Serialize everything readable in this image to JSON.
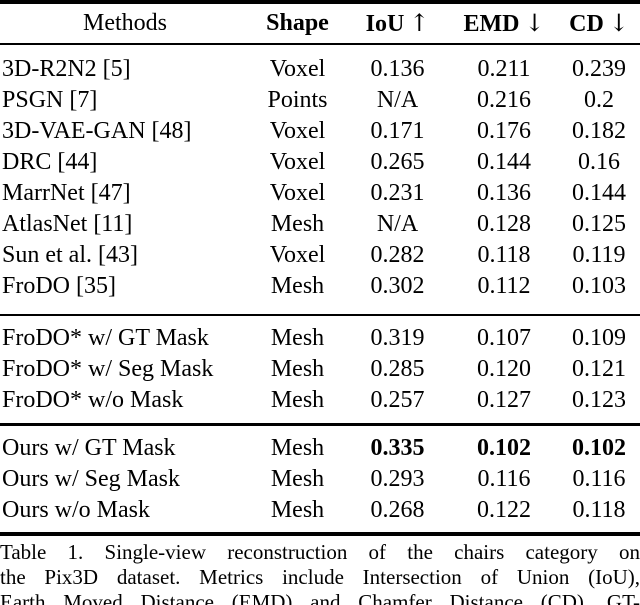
{
  "colors": {
    "background": "#ffffff",
    "text": "#000000",
    "rule": "#000000"
  },
  "table": {
    "header": {
      "methods": "Methods",
      "shape": "Shape",
      "iou": "IoU",
      "emd": "EMD",
      "cd": "CD",
      "arrow_up": "↑",
      "arrow_down": "↓"
    },
    "sections": [
      {
        "rows": [
          {
            "method": "3D-R2N2 [5]",
            "shape": "Voxel",
            "iou": "0.136",
            "emd": "0.211",
            "cd": "0.239",
            "bold_values": false
          },
          {
            "method": "PSGN [7]",
            "shape": "Points",
            "iou": "N/A",
            "emd": "0.216",
            "cd": "0.2",
            "bold_values": false
          },
          {
            "method": "3D-VAE-GAN [48]",
            "shape": "Voxel",
            "iou": "0.171",
            "emd": "0.176",
            "cd": "0.182",
            "bold_values": false
          },
          {
            "method": "DRC [44]",
            "shape": "Voxel",
            "iou": "0.265",
            "emd": "0.144",
            "cd": "0.16",
            "bold_values": false
          },
          {
            "method": "MarrNet [47]",
            "shape": "Voxel",
            "iou": "0.231",
            "emd": "0.136",
            "cd": "0.144",
            "bold_values": false
          },
          {
            "method": "AtlasNet [11]",
            "shape": "Mesh",
            "iou": "N/A",
            "emd": "0.128",
            "cd": "0.125",
            "bold_values": false
          },
          {
            "method": "Sun et al. [43]",
            "shape": "Voxel",
            "iou": "0.282",
            "emd": "0.118",
            "cd": "0.119",
            "bold_values": false
          },
          {
            "method": "FroDO [35]",
            "shape": "Mesh",
            "iou": "0.302",
            "emd": "0.112",
            "cd": "0.103",
            "bold_values": false
          }
        ]
      },
      {
        "rows": [
          {
            "method": "FroDO* w/ GT Mask",
            "shape": "Mesh",
            "iou": "0.319",
            "emd": "0.107",
            "cd": "0.109",
            "bold_values": false
          },
          {
            "method": "FroDO* w/ Seg Mask",
            "shape": "Mesh",
            "iou": "0.285",
            "emd": "0.120",
            "cd": "0.121",
            "bold_values": false
          },
          {
            "method": "FroDO* w/o Mask",
            "shape": "Mesh",
            "iou": "0.257",
            "emd": "0.127",
            "cd": "0.123",
            "bold_values": false
          }
        ]
      },
      {
        "rows": [
          {
            "method": "Ours w/ GT Mask",
            "shape": "Mesh",
            "iou": "0.335",
            "emd": "0.102",
            "cd": "0.102",
            "bold_values": true
          },
          {
            "method": "Ours w/ Seg Mask",
            "shape": "Mesh",
            "iou": "0.293",
            "emd": "0.116",
            "cd": "0.116",
            "bold_values": false
          },
          {
            "method": "Ours w/o Mask",
            "shape": "Mesh",
            "iou": "0.268",
            "emd": "0.122",
            "cd": "0.118",
            "bold_values": false
          }
        ]
      }
    ]
  },
  "caption": {
    "lines": [
      "Table 1. Single-view reconstruction of the chairs category on",
      "the Pix3D dataset. Metrics include Intersection of Union (IoU),",
      "Earth Moved Distance (EMD) and Chamfer Distance (CD). GT-"
    ]
  }
}
